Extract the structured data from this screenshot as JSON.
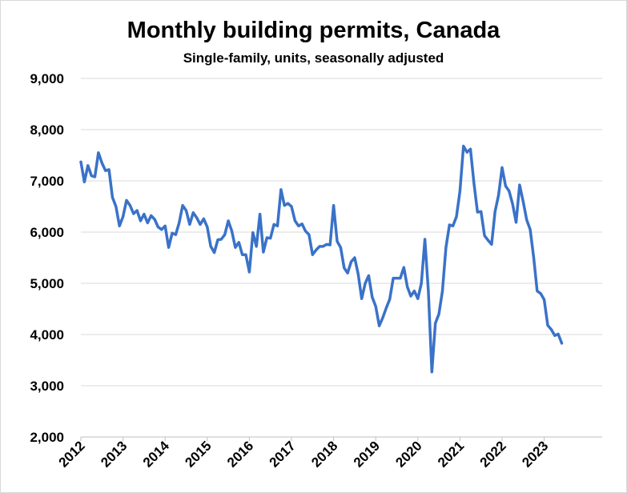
{
  "chart_data": {
    "type": "line",
    "title": "Monthly building permits, Canada",
    "subtitle": "Single-family, units, seasonally adjusted",
    "xlabel": "",
    "ylabel": "",
    "ylim": [
      2000,
      9000
    ],
    "yticks": [
      2000,
      3000,
      4000,
      5000,
      6000,
      7000,
      8000,
      9000
    ],
    "ytick_labels": [
      "2,000",
      "3,000",
      "4,000",
      "5,000",
      "6,000",
      "7,000",
      "8,000",
      "9,000"
    ],
    "xticks": [
      "2012",
      "2013",
      "2014",
      "2015",
      "2016",
      "2017",
      "2018",
      "2019",
      "2020",
      "2021",
      "2022",
      "2023"
    ],
    "grid": "horizontal",
    "legend": "none",
    "line_color": "#3a72c8",
    "series": [
      {
        "x": [
          "2012-01",
          "2012-02",
          "2012-03",
          "2012-04",
          "2012-05",
          "2012-06",
          "2012-07",
          "2012-08",
          "2012-09",
          "2012-10",
          "2012-11",
          "2012-12",
          "2013-01",
          "2013-02",
          "2013-03",
          "2013-04",
          "2013-05",
          "2013-06",
          "2013-07",
          "2013-08",
          "2013-09",
          "2013-10",
          "2013-11",
          "2013-12",
          "2014-01",
          "2014-02",
          "2014-03",
          "2014-04",
          "2014-05",
          "2014-06",
          "2014-07",
          "2014-08",
          "2014-09",
          "2014-10",
          "2014-11",
          "2014-12",
          "2015-01",
          "2015-02",
          "2015-03",
          "2015-04",
          "2015-05",
          "2015-06",
          "2015-07",
          "2015-08",
          "2015-09",
          "2015-10",
          "2015-11",
          "2015-12",
          "2016-01",
          "2016-02",
          "2016-03",
          "2016-04",
          "2016-05",
          "2016-06",
          "2016-07",
          "2016-08",
          "2016-09",
          "2016-10",
          "2016-11",
          "2016-12",
          "2017-01",
          "2017-02",
          "2017-03",
          "2017-04",
          "2017-05",
          "2017-06",
          "2017-07",
          "2017-08",
          "2017-09",
          "2017-10",
          "2017-11",
          "2017-12",
          "2018-01",
          "2018-02",
          "2018-03",
          "2018-04",
          "2018-05",
          "2018-06",
          "2018-07",
          "2018-08",
          "2018-09",
          "2018-10",
          "2018-11",
          "2018-12",
          "2019-01",
          "2019-02",
          "2019-03",
          "2019-04",
          "2019-05",
          "2019-06",
          "2019-07",
          "2019-08",
          "2019-09",
          "2019-10",
          "2019-11",
          "2019-12",
          "2020-01",
          "2020-02",
          "2020-03",
          "2020-04",
          "2020-05",
          "2020-06",
          "2020-07",
          "2020-08",
          "2020-09",
          "2020-10",
          "2020-11",
          "2020-12",
          "2021-01",
          "2021-02",
          "2021-03",
          "2021-04",
          "2021-05",
          "2021-06",
          "2021-07",
          "2021-08",
          "2021-09",
          "2021-10",
          "2021-11",
          "2021-12",
          "2022-01",
          "2022-02",
          "2022-03",
          "2022-04",
          "2022-05",
          "2022-06",
          "2022-07",
          "2022-08",
          "2022-09",
          "2022-10",
          "2022-11",
          "2022-12",
          "2023-01",
          "2023-02",
          "2023-03",
          "2023-04",
          "2023-05",
          "2023-06"
        ],
        "values": [
          7370,
          6980,
          7300,
          7100,
          7080,
          7550,
          7350,
          7200,
          7220,
          6680,
          6500,
          6120,
          6300,
          6620,
          6520,
          6360,
          6420,
          6220,
          6350,
          6180,
          6320,
          6250,
          6100,
          6050,
          6120,
          5700,
          5980,
          5950,
          6180,
          6520,
          6420,
          6150,
          6380,
          6280,
          6150,
          6260,
          6100,
          5720,
          5600,
          5850,
          5860,
          5950,
          6220,
          6020,
          5700,
          5800,
          5560,
          5560,
          5220,
          5990,
          5720,
          6350,
          5610,
          5890,
          5880,
          6150,
          6120,
          6830,
          6520,
          6560,
          6500,
          6220,
          6120,
          6160,
          6020,
          5950,
          5560,
          5650,
          5720,
          5720,
          5760,
          5750,
          6520,
          5820,
          5700,
          5300,
          5200,
          5420,
          5500,
          5180,
          4700,
          5000,
          5150,
          4730,
          4550,
          4170,
          4330,
          4520,
          4690,
          5100,
          5100,
          5100,
          5310,
          4930,
          4750,
          4850,
          4700,
          5000,
          5860,
          4830,
          3270,
          4220,
          4400,
          4850,
          5700,
          6140,
          6120,
          6300,
          6800,
          7680,
          7560,
          7620,
          6950,
          6390,
          6400,
          5930,
          5840,
          5760,
          6400,
          6720,
          7260,
          6900,
          6800,
          6550,
          6190,
          6920,
          6600,
          6240,
          6050,
          5500,
          4850,
          4800,
          4680,
          4180,
          4100,
          3980,
          4010,
          3830
        ]
      }
    ]
  }
}
